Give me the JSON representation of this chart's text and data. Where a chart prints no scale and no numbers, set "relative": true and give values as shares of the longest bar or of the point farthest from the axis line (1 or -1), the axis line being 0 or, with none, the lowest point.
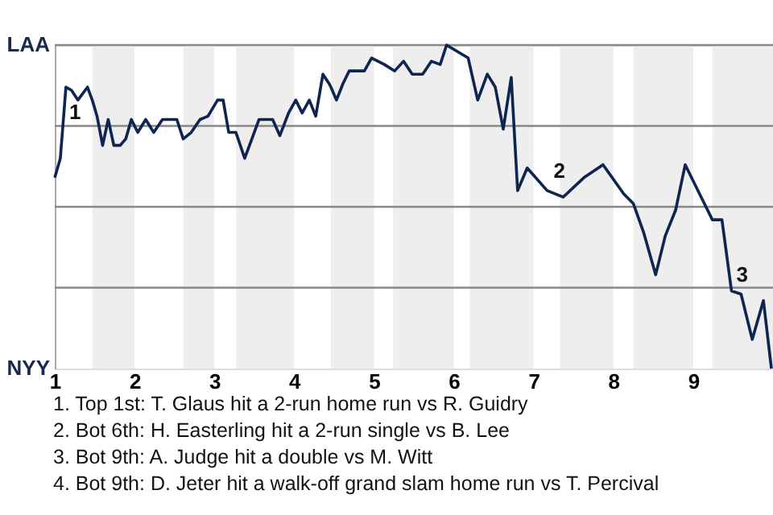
{
  "chart_data": {
    "type": "line",
    "x": [
      1.0,
      1.07,
      1.14,
      1.21,
      1.29,
      1.41,
      1.47,
      1.53,
      1.6,
      1.67,
      1.74,
      1.82,
      1.89,
      1.96,
      2.04,
      2.14,
      2.24,
      2.35,
      2.53,
      2.61,
      2.71,
      2.82,
      2.92,
      3.04,
      3.11,
      3.18,
      3.27,
      3.38,
      3.47,
      3.56,
      3.73,
      3.82,
      3.93,
      4.02,
      4.1,
      4.19,
      4.27,
      4.36,
      4.44,
      4.46,
      4.53,
      4.61,
      4.69,
      4.88,
      4.97,
      5.13,
      5.26,
      5.37,
      5.48,
      5.61,
      5.72,
      5.83,
      5.91,
      6.18,
      6.3,
      6.42,
      6.52,
      6.62,
      6.72,
      6.8,
      6.92,
      7.17,
      7.37,
      7.63,
      7.87,
      8.13,
      8.25,
      8.38,
      8.53,
      8.65,
      8.78,
      8.9,
      9.1,
      9.24,
      9.36,
      9.48,
      9.6,
      9.74,
      9.88,
      9.98
    ],
    "series": [
      {
        "color": "#0d2550",
        "values": [
          0.59,
          0.65,
          0.87,
          0.86,
          0.83,
          0.87,
          0.83,
          0.78,
          0.69,
          0.77,
          0.69,
          0.69,
          0.71,
          0.77,
          0.73,
          0.77,
          0.73,
          0.77,
          0.77,
          0.71,
          0.73,
          0.77,
          0.78,
          0.83,
          0.83,
          0.73,
          0.73,
          0.65,
          0.71,
          0.77,
          0.77,
          0.72,
          0.79,
          0.83,
          0.79,
          0.83,
          0.78,
          0.91,
          0.88,
          0.87,
          0.83,
          0.88,
          0.92,
          0.92,
          0.96,
          0.94,
          0.92,
          0.95,
          0.91,
          0.91,
          0.95,
          0.94,
          1,
          0.96,
          0.83,
          0.91,
          0.87,
          0.74,
          0.9,
          0.55,
          0.62,
          0.55,
          0.53,
          0.59,
          0.63,
          0.54,
          0.51,
          0.42,
          0.29,
          0.41,
          0.49,
          0.63,
          0.53,
          0.46,
          0.46,
          0.24,
          0.23,
          0.09,
          0.21,
          0
        ]
      }
    ],
    "relative": true,
    "xlim": [
      1,
      10
    ],
    "xticks": [
      1,
      2,
      3,
      4,
      5,
      6,
      7,
      8,
      9
    ],
    "grid": "y",
    "line_style": "solid",
    "bands": [
      {
        "axis": "x",
        "from": 1.47,
        "to": 2,
        "color": "#eeeeee"
      },
      {
        "axis": "x",
        "from": 2.61,
        "to": 3,
        "color": "#eeeeee"
      },
      {
        "axis": "x",
        "from": 3.27,
        "to": 4,
        "color": "#eeeeee"
      },
      {
        "axis": "x",
        "from": 4.46,
        "to": 5,
        "color": "#eeeeee"
      },
      {
        "axis": "x",
        "from": 5.24,
        "to": 6,
        "color": "#eeeeee"
      },
      {
        "axis": "x",
        "from": 6.2,
        "to": 7,
        "color": "#eeeeee"
      },
      {
        "axis": "x",
        "from": 7.33,
        "to": 8,
        "color": "#eeeeee"
      },
      {
        "axis": "x",
        "from": 8.25,
        "to": 9,
        "color": "#eeeeee"
      },
      {
        "axis": "x",
        "from": 9.24,
        "to": 10,
        "color": "#eeeeee"
      }
    ],
    "annotations": [
      "LAA",
      "NYY",
      {
        "text": "1",
        "x": 1.14,
        "y": 0.87
      },
      {
        "text": "2",
        "x": 7.17,
        "y": 0.55
      },
      {
        "text": "3",
        "x": 9.48,
        "y": 0.24
      },
      "1. Top 1st: T. Glaus hit a 2-run home run vs R. Guidry",
      "2. Bot 6th: H. Easterling hit a 2-run single vs B. Lee",
      "3. Bot 9th: A. Judge hit a double vs M. Witt",
      "4. Bot 9th: D. Jeter hit a walk-off grand slam home run vs T. Percival"
    ]
  }
}
